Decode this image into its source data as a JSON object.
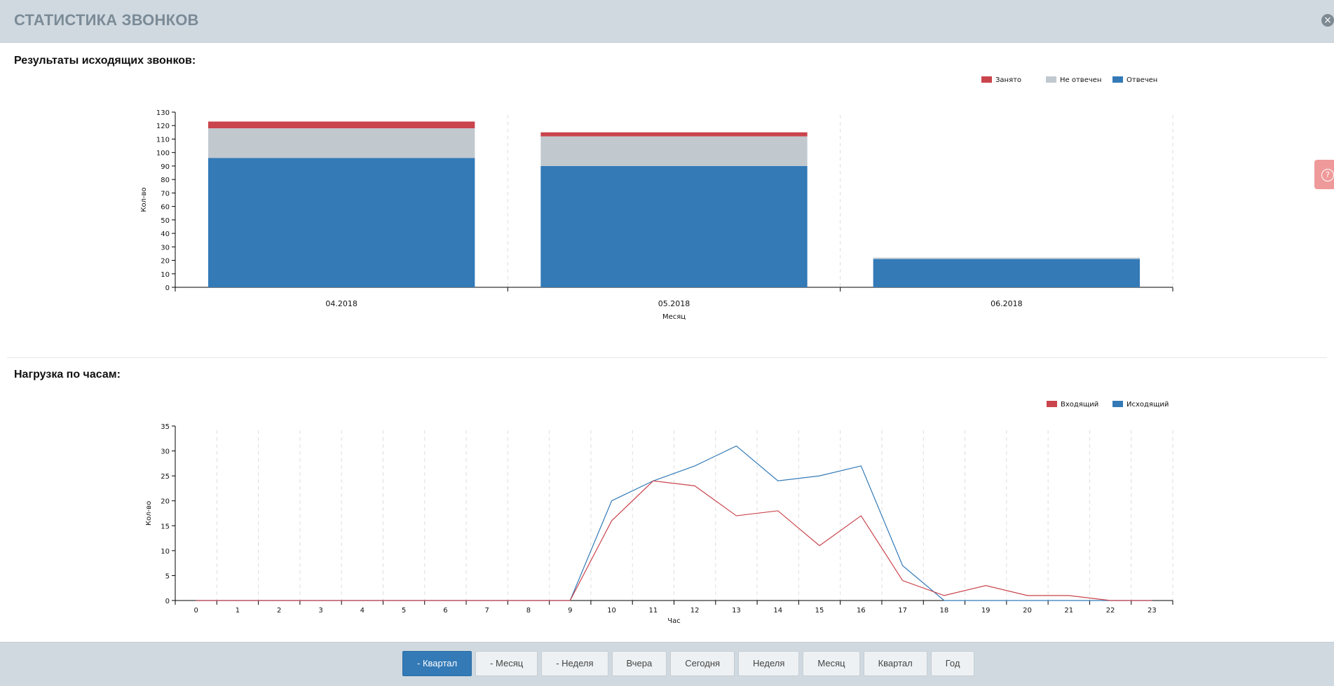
{
  "header": {
    "title": "СТАТИСТИКА ЗВОНКОВ",
    "close_symbol": "×"
  },
  "help": {
    "symbol": "?"
  },
  "colors": {
    "answered": "#337ab7",
    "no_answer": "#c1c9cf",
    "busy": "#c9444c",
    "incoming": "#c9444c",
    "outgoing": "#337ab7"
  },
  "sections": {
    "outgoing_results": "Результаты исходящих звонков:",
    "hourly_load": "Нагрузка по часам:"
  },
  "chart_data": [
    {
      "type": "bar",
      "stacked": true,
      "title": "Результаты исходящих звонков:",
      "xlabel": "Месяц",
      "ylabel": "Кол-во",
      "ylim": [
        0,
        130
      ],
      "yticks": [
        0,
        10,
        20,
        30,
        40,
        50,
        60,
        70,
        80,
        90,
        100,
        110,
        120,
        130
      ],
      "categories": [
        "04.2018",
        "05.2018",
        "06.2018"
      ],
      "series": [
        {
          "name": "Отвечен",
          "color": "#337ab7",
          "values": [
            96,
            90,
            21
          ]
        },
        {
          "name": "Не отвечен",
          "color": "#c1c9cf",
          "values": [
            22,
            22,
            1
          ]
        },
        {
          "name": "Занято",
          "color": "#c9444c",
          "values": [
            5,
            3,
            0
          ]
        }
      ],
      "legend_order": [
        "Занято",
        "Не отвечен",
        "Отвечен"
      ],
      "legend": "top-right",
      "grid": "vertical-dashed"
    },
    {
      "type": "line",
      "title": "Нагрузка по часам:",
      "xlabel": "Час",
      "ylabel": "Кол-во",
      "ylim": [
        0,
        35
      ],
      "yticks": [
        0,
        5,
        10,
        15,
        20,
        25,
        30,
        35
      ],
      "x": [
        0,
        1,
        2,
        3,
        4,
        5,
        6,
        7,
        8,
        9,
        10,
        11,
        12,
        13,
        14,
        15,
        16,
        17,
        18,
        19,
        20,
        21,
        22,
        23
      ],
      "series": [
        {
          "name": "Входящий",
          "color": "#c9444c",
          "values": [
            0,
            0,
            0,
            0,
            0,
            0,
            0,
            0,
            0,
            0,
            16,
            24,
            23,
            17,
            18,
            11,
            17,
            4,
            1,
            3,
            1,
            1,
            0,
            0
          ]
        },
        {
          "name": "Исходящий",
          "color": "#337ab7",
          "values": [
            0,
            0,
            0,
            0,
            0,
            0,
            0,
            0,
            0,
            0,
            20,
            24,
            27,
            31,
            24,
            25,
            27,
            7,
            0,
            0,
            0,
            0,
            0,
            0
          ]
        }
      ],
      "legend": "top-right",
      "grid": "vertical-dashed"
    }
  ],
  "footer": {
    "buttons": [
      {
        "label": "- Квартал",
        "active": true
      },
      {
        "label": "- Месяц",
        "active": false
      },
      {
        "label": "- Неделя",
        "active": false
      },
      {
        "label": "Вчера",
        "active": false
      },
      {
        "label": "Сегодня",
        "active": false
      },
      {
        "label": "Неделя",
        "active": false
      },
      {
        "label": "Месяц",
        "active": false
      },
      {
        "label": "Квартал",
        "active": false
      },
      {
        "label": "Год",
        "active": false
      }
    ]
  }
}
